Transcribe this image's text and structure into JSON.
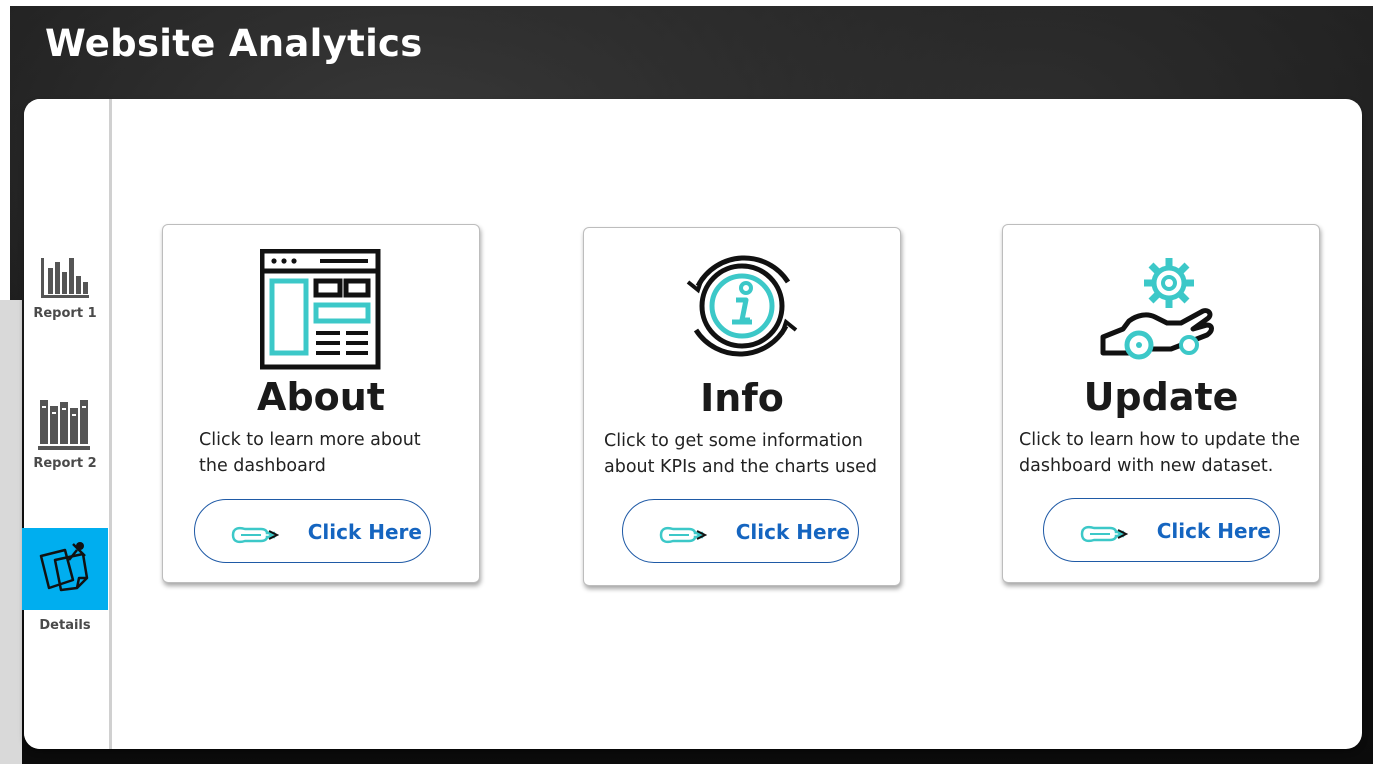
{
  "app": {
    "title": "Website Analytics"
  },
  "sidebar": {
    "items": [
      {
        "label": "Report 1",
        "icon": "bar-chart-icon",
        "active": false
      },
      {
        "label": "Report 2",
        "icon": "books-icon",
        "active": false
      },
      {
        "label": "Details",
        "icon": "sticky-notes-icon",
        "active": true
      }
    ],
    "active_color": "#00aeef"
  },
  "cards": [
    {
      "title": "About",
      "description_line1": "Click to learn more about",
      "description_line2": "the dashboard",
      "button_label": "Click Here",
      "icon": "web-layout-icon"
    },
    {
      "title": "Info",
      "description_line1": "Click to get some information",
      "description_line2": "about KPIs and the charts used",
      "button_label": "Click Here",
      "icon": "info-refresh-icon"
    },
    {
      "title": "Update",
      "description_line1": "Click to learn how to update the",
      "description_line2": "dashboard with new dataset.",
      "button_label": "Click Here",
      "icon": "hand-gear-icon"
    }
  ],
  "colors": {
    "accent": "#3cc8c8",
    "link": "#1565c0",
    "button_border": "#1f5aa6"
  }
}
